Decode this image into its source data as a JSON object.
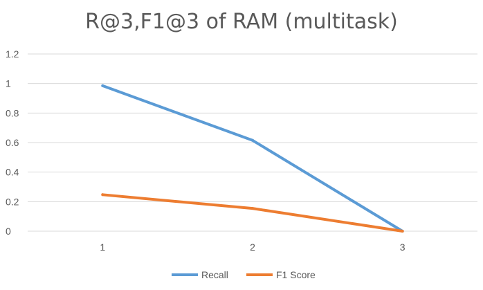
{
  "chart_data": {
    "type": "line",
    "title": "R@3,F1@3 of RAM (multitask)",
    "xlabel": "",
    "ylabel": "",
    "categories": [
      "1",
      "2",
      "3"
    ],
    "ylim": [
      0,
      1.2
    ],
    "yticks": [
      "0",
      "0.2",
      "0.4",
      "0.6",
      "0.8",
      "1",
      "1.2"
    ],
    "grid": true,
    "legend": "bottom",
    "series": [
      {
        "name": "Recall",
        "values": [
          0.985,
          0.615,
          0.0
        ],
        "color": "#5B9BD5"
      },
      {
        "name": "F1 Score",
        "values": [
          0.247,
          0.154,
          0.0
        ],
        "color": "#ED7D31"
      }
    ]
  }
}
